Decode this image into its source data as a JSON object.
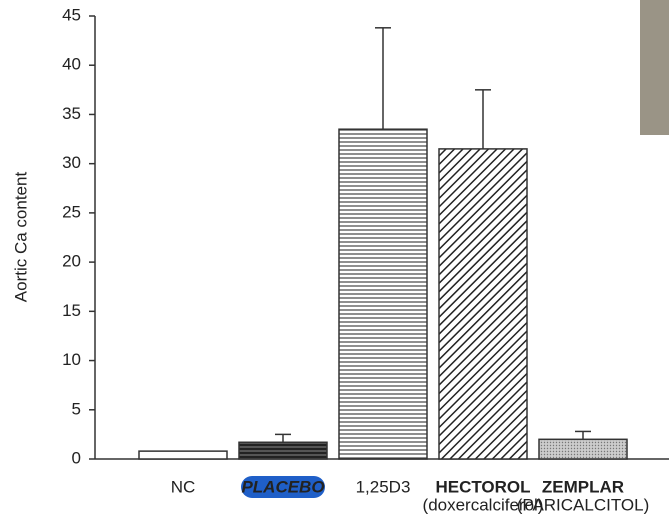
{
  "chart_data": {
    "type": "bar",
    "y_label": "Aortic Ca content",
    "categories": [
      "NC",
      "PLACEBO",
      "1,25D3",
      "HECTOROL",
      "ZEMPLAR"
    ],
    "category_sublabels": [
      null,
      null,
      null,
      "(doxercalciferol)",
      "(PARICALCITOL)"
    ],
    "values": [
      0.8,
      1.7,
      33.5,
      31.5,
      2.0
    ],
    "errors": [
      null,
      0.8,
      10.3,
      6.0,
      0.8
    ],
    "ylim": [
      0,
      45
    ],
    "yticks": [
      0,
      5,
      10,
      15,
      20,
      25,
      30,
      35,
      40,
      45
    ],
    "grid": false
  }
}
